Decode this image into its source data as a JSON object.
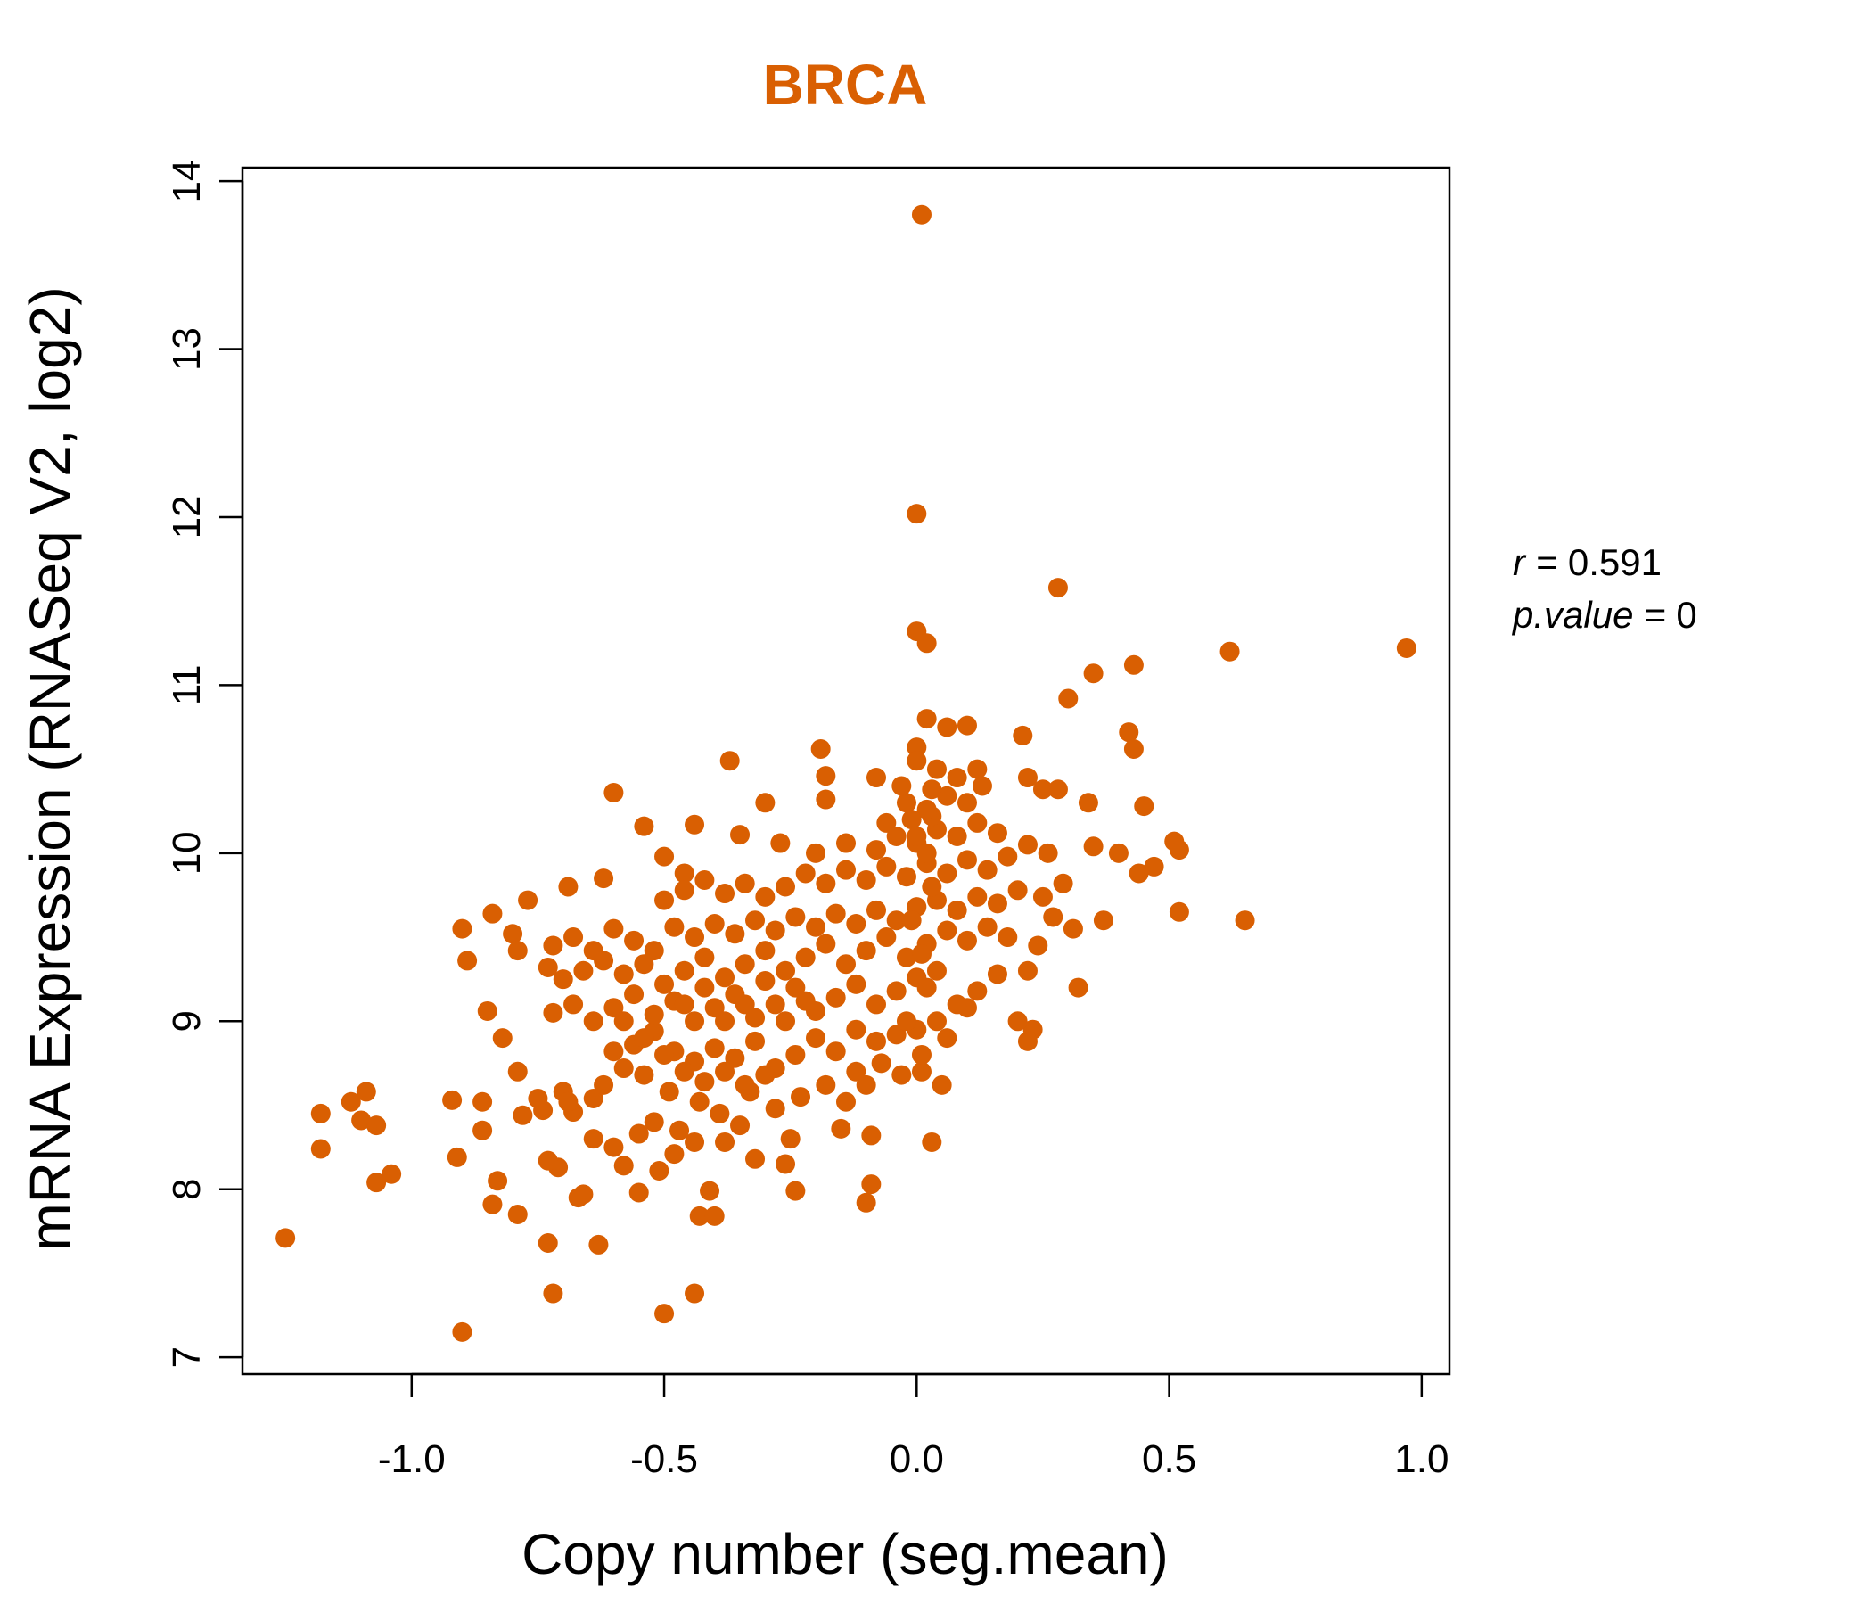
{
  "chart_data": {
    "type": "scatter",
    "title": "BRCA",
    "xlabel": "Copy number (seg.mean)",
    "ylabel": "mRNA Expression (RNASeq V2, log2)",
    "xlim": [
      -1.335,
      1.055
    ],
    "ylim": [
      6.9,
      14.08
    ],
    "x_ticks": [
      -1.0,
      -0.5,
      0.0,
      0.5,
      1.0
    ],
    "x_tick_labels": [
      "-1.0",
      "-0.5",
      "0.0",
      "0.5",
      "1.0"
    ],
    "y_ticks": [
      7,
      8,
      9,
      10,
      11,
      12,
      13,
      14
    ],
    "y_tick_labels": [
      "7",
      "8",
      "9",
      "10",
      "11",
      "12",
      "13",
      "14"
    ],
    "grid": false,
    "point_color": "#d95f02",
    "annotations": [
      {
        "name": "r",
        "value": "0.591"
      },
      {
        "name": "p.value",
        "value": "0"
      }
    ],
    "series": [
      {
        "points": [
          [
            0.01,
            13.8
          ],
          [
            0.0,
            12.02
          ],
          [
            0.28,
            11.58
          ],
          [
            0.0,
            11.32
          ],
          [
            0.02,
            11.25
          ],
          [
            0.97,
            11.22
          ],
          [
            0.62,
            11.2
          ],
          [
            0.43,
            11.12
          ],
          [
            0.35,
            11.07
          ],
          [
            0.3,
            10.92
          ],
          [
            0.02,
            10.8
          ],
          [
            0.06,
            10.75
          ],
          [
            0.1,
            10.76
          ],
          [
            0.21,
            10.7
          ],
          [
            0.42,
            10.72
          ],
          [
            0.43,
            10.62
          ],
          [
            -0.19,
            10.62
          ],
          [
            -0.37,
            10.55
          ],
          [
            0.0,
            10.63
          ],
          [
            0.12,
            10.5
          ],
          [
            -0.18,
            10.46
          ],
          [
            0.22,
            10.45
          ],
          [
            0.25,
            10.38
          ],
          [
            -0.6,
            10.36
          ],
          [
            -0.3,
            10.3
          ],
          [
            -0.18,
            10.32
          ],
          [
            0.45,
            10.28
          ],
          [
            0.34,
            10.3
          ],
          [
            0.28,
            10.38
          ],
          [
            -0.08,
            10.45
          ],
          [
            -0.54,
            10.16
          ],
          [
            -0.44,
            10.17
          ],
          [
            -0.35,
            10.11
          ],
          [
            -0.27,
            10.06
          ],
          [
            0.51,
            10.07
          ],
          [
            0.52,
            10.02
          ],
          [
            0.4,
            10.0
          ],
          [
            0.35,
            10.04
          ],
          [
            0.44,
            9.88
          ],
          [
            0.47,
            9.92
          ],
          [
            -0.5,
            9.98
          ],
          [
            -0.46,
            9.88
          ],
          [
            -0.62,
            9.85
          ],
          [
            -0.69,
            9.8
          ],
          [
            0.29,
            9.82
          ],
          [
            -0.77,
            9.72
          ],
          [
            -0.84,
            9.64
          ],
          [
            -0.9,
            9.55
          ],
          [
            -0.89,
            9.36
          ],
          [
            -0.8,
            9.52
          ],
          [
            0.52,
            9.65
          ],
          [
            0.65,
            9.6
          ],
          [
            0.37,
            9.6
          ],
          [
            0.31,
            9.55
          ],
          [
            -0.79,
            9.42
          ],
          [
            -0.73,
            9.32
          ],
          [
            -0.85,
            9.06
          ],
          [
            -0.82,
            8.9
          ],
          [
            -0.79,
            8.7
          ],
          [
            -0.92,
            8.53
          ],
          [
            -0.86,
            8.52
          ],
          [
            -1.09,
            8.58
          ],
          [
            -1.12,
            8.52
          ],
          [
            -1.18,
            8.45
          ],
          [
            -1.1,
            8.41
          ],
          [
            -1.07,
            8.38
          ],
          [
            -0.86,
            8.35
          ],
          [
            -1.18,
            8.24
          ],
          [
            -0.91,
            8.19
          ],
          [
            -1.04,
            8.09
          ],
          [
            -1.07,
            8.04
          ],
          [
            -0.83,
            8.05
          ],
          [
            -0.84,
            7.91
          ],
          [
            -0.79,
            7.85
          ],
          [
            -1.25,
            7.71
          ],
          [
            -0.73,
            7.68
          ],
          [
            -0.63,
            7.67
          ],
          [
            -0.72,
            7.38
          ],
          [
            -0.44,
            7.38
          ],
          [
            -0.9,
            7.15
          ],
          [
            -0.5,
            7.26
          ],
          [
            -0.43,
            7.84
          ],
          [
            -0.4,
            7.84
          ],
          [
            -0.55,
            7.98
          ],
          [
            -0.41,
            7.99
          ],
          [
            -0.24,
            7.99
          ],
          [
            -0.1,
            7.92
          ],
          [
            -0.09,
            8.03
          ],
          [
            0.03,
            8.28
          ],
          [
            0.32,
            9.2
          ],
          [
            0.22,
            9.3
          ],
          [
            0.23,
            8.95
          ],
          [
            0.22,
            8.88
          ],
          [
            0.1,
            9.08
          ],
          [
            0.2,
            9.0
          ],
          [
            -0.1,
            8.62
          ],
          [
            0.05,
            8.62
          ],
          [
            -0.14,
            8.52
          ],
          [
            -0.15,
            8.36
          ],
          [
            -0.09,
            8.32
          ],
          [
            -0.25,
            8.3
          ],
          [
            -0.26,
            8.15
          ],
          [
            -0.32,
            8.18
          ],
          [
            -0.48,
            8.21
          ],
          [
            -0.51,
            8.11
          ],
          [
            -0.66,
            7.97
          ],
          [
            -0.67,
            7.95
          ],
          [
            -0.71,
            8.13
          ],
          [
            -0.73,
            8.17
          ],
          [
            -0.58,
            8.14
          ],
          [
            -0.6,
            8.25
          ],
          [
            -0.55,
            8.33
          ],
          [
            -0.52,
            8.4
          ],
          [
            -0.47,
            8.35
          ],
          [
            -0.44,
            8.28
          ],
          [
            -0.38,
            8.28
          ],
          [
            -0.35,
            8.38
          ],
          [
            -0.64,
            8.3
          ],
          [
            -0.68,
            8.46
          ],
          [
            -0.7,
            8.58
          ],
          [
            -0.75,
            8.54
          ],
          [
            -0.69,
            8.52
          ],
          [
            -0.74,
            8.47
          ],
          [
            -0.78,
            8.44
          ],
          [
            -0.64,
            8.54
          ],
          [
            -0.62,
            8.62
          ],
          [
            -0.58,
            8.72
          ],
          [
            -0.54,
            8.68
          ],
          [
            -0.49,
            8.58
          ],
          [
            -0.43,
            8.52
          ],
          [
            -0.39,
            8.45
          ],
          [
            -0.33,
            8.58
          ],
          [
            -0.28,
            8.48
          ],
          [
            -0.23,
            8.55
          ],
          [
            -0.18,
            8.62
          ],
          [
            -0.12,
            8.7
          ],
          [
            -0.07,
            8.75
          ],
          [
            -0.03,
            8.68
          ],
          [
            0.01,
            8.7
          ],
          [
            0.06,
            8.9
          ],
          [
            -0.6,
            8.82
          ],
          [
            -0.56,
            8.86
          ],
          [
            -0.52,
            8.94
          ],
          [
            -0.48,
            8.82
          ],
          [
            -0.44,
            8.76
          ],
          [
            -0.4,
            8.84
          ],
          [
            -0.36,
            8.78
          ],
          [
            -0.32,
            8.88
          ],
          [
            -0.28,
            8.72
          ],
          [
            -0.24,
            8.8
          ],
          [
            -0.2,
            8.9
          ],
          [
            -0.16,
            8.82
          ],
          [
            -0.12,
            8.95
          ],
          [
            -0.08,
            8.88
          ],
          [
            -0.04,
            8.92
          ],
          [
            0.0,
            8.95
          ],
          [
            0.04,
            9.0
          ],
          [
            0.08,
            9.1
          ],
          [
            0.12,
            9.18
          ],
          [
            0.16,
            9.28
          ],
          [
            -0.72,
            9.05
          ],
          [
            -0.68,
            9.1
          ],
          [
            -0.64,
            9.0
          ],
          [
            -0.6,
            9.08
          ],
          [
            -0.56,
            9.16
          ],
          [
            -0.52,
            9.04
          ],
          [
            -0.48,
            9.12
          ],
          [
            -0.44,
            9.0
          ],
          [
            -0.4,
            9.08
          ],
          [
            -0.36,
            9.16
          ],
          [
            -0.32,
            9.02
          ],
          [
            -0.28,
            9.1
          ],
          [
            -0.24,
            9.2
          ],
          [
            -0.2,
            9.06
          ],
          [
            -0.16,
            9.14
          ],
          [
            -0.12,
            9.22
          ],
          [
            -0.08,
            9.1
          ],
          [
            -0.04,
            9.18
          ],
          [
            0.0,
            9.26
          ],
          [
            0.04,
            9.3
          ],
          [
            -0.7,
            9.25
          ],
          [
            -0.66,
            9.3
          ],
          [
            -0.62,
            9.36
          ],
          [
            -0.58,
            9.28
          ],
          [
            -0.54,
            9.34
          ],
          [
            -0.5,
            9.22
          ],
          [
            -0.46,
            9.3
          ],
          [
            -0.42,
            9.38
          ],
          [
            -0.38,
            9.26
          ],
          [
            -0.34,
            9.34
          ],
          [
            -0.3,
            9.42
          ],
          [
            -0.26,
            9.3
          ],
          [
            -0.22,
            9.38
          ],
          [
            -0.18,
            9.46
          ],
          [
            -0.14,
            9.34
          ],
          [
            -0.1,
            9.42
          ],
          [
            -0.06,
            9.5
          ],
          [
            -0.02,
            9.38
          ],
          [
            0.02,
            9.46
          ],
          [
            0.06,
            9.54
          ],
          [
            0.1,
            9.48
          ],
          [
            0.14,
            9.56
          ],
          [
            0.18,
            9.5
          ],
          [
            0.24,
            9.45
          ],
          [
            0.27,
            9.62
          ],
          [
            -0.72,
            9.45
          ],
          [
            -0.68,
            9.5
          ],
          [
            -0.64,
            9.42
          ],
          [
            -0.6,
            9.55
          ],
          [
            -0.56,
            9.48
          ],
          [
            -0.52,
            9.42
          ],
          [
            -0.48,
            9.56
          ],
          [
            -0.44,
            9.5
          ],
          [
            -0.4,
            9.58
          ],
          [
            -0.36,
            9.52
          ],
          [
            -0.32,
            9.6
          ],
          [
            -0.28,
            9.54
          ],
          [
            -0.24,
            9.62
          ],
          [
            -0.2,
            9.56
          ],
          [
            -0.16,
            9.64
          ],
          [
            -0.12,
            9.58
          ],
          [
            -0.08,
            9.66
          ],
          [
            -0.04,
            9.6
          ],
          [
            0.0,
            9.68
          ],
          [
            0.04,
            9.72
          ],
          [
            0.08,
            9.66
          ],
          [
            0.12,
            9.74
          ],
          [
            0.16,
            9.7
          ],
          [
            0.2,
            9.78
          ],
          [
            0.25,
            9.74
          ],
          [
            -0.5,
            9.72
          ],
          [
            -0.46,
            9.78
          ],
          [
            -0.42,
            9.84
          ],
          [
            -0.38,
            9.76
          ],
          [
            -0.34,
            9.82
          ],
          [
            -0.3,
            9.74
          ],
          [
            -0.26,
            9.8
          ],
          [
            -0.22,
            9.88
          ],
          [
            -0.18,
            9.82
          ],
          [
            -0.14,
            9.9
          ],
          [
            -0.1,
            9.84
          ],
          [
            -0.06,
            9.92
          ],
          [
            -0.02,
            9.86
          ],
          [
            0.02,
            9.94
          ],
          [
            0.06,
            9.88
          ],
          [
            0.1,
            9.96
          ],
          [
            0.14,
            9.9
          ],
          [
            0.18,
            9.98
          ],
          [
            0.22,
            10.05
          ],
          [
            0.26,
            10.0
          ],
          [
            -0.2,
            10.0
          ],
          [
            -0.14,
            10.06
          ],
          [
            -0.08,
            10.02
          ],
          [
            -0.04,
            10.1
          ],
          [
            0.0,
            10.06
          ],
          [
            0.04,
            10.14
          ],
          [
            0.08,
            10.1
          ],
          [
            0.12,
            10.18
          ],
          [
            0.16,
            10.12
          ],
          [
            0.03,
            10.22
          ],
          [
            -0.06,
            10.18
          ],
          [
            -0.02,
            10.3
          ],
          [
            0.02,
            10.26
          ],
          [
            0.06,
            10.34
          ],
          [
            0.1,
            10.3
          ],
          [
            0.13,
            10.4
          ],
          [
            0.08,
            10.45
          ],
          [
            0.04,
            10.5
          ],
          [
            -0.03,
            10.4
          ],
          [
            0.0,
            10.55
          ],
          [
            0.02,
            10.0
          ],
          [
            0.03,
            9.8
          ],
          [
            -0.01,
            9.6
          ],
          [
            0.01,
            9.4
          ],
          [
            0.02,
            9.2
          ],
          [
            -0.02,
            9.0
          ],
          [
            0.01,
            8.8
          ],
          [
            -0.01,
            10.2
          ],
          [
            0.03,
            10.38
          ],
          [
            0.0,
            10.1
          ],
          [
            -0.46,
            9.1
          ],
          [
            -0.42,
            9.2
          ],
          [
            -0.38,
            9.0
          ],
          [
            -0.34,
            9.1
          ],
          [
            -0.3,
            9.24
          ],
          [
            -0.26,
            9.0
          ],
          [
            -0.22,
            9.12
          ],
          [
            -0.58,
            9.0
          ],
          [
            -0.54,
            8.9
          ],
          [
            -0.5,
            8.8
          ],
          [
            -0.46,
            8.7
          ],
          [
            -0.42,
            8.64
          ],
          [
            -0.38,
            8.7
          ],
          [
            -0.34,
            8.62
          ],
          [
            -0.3,
            8.68
          ]
        ]
      }
    ]
  }
}
